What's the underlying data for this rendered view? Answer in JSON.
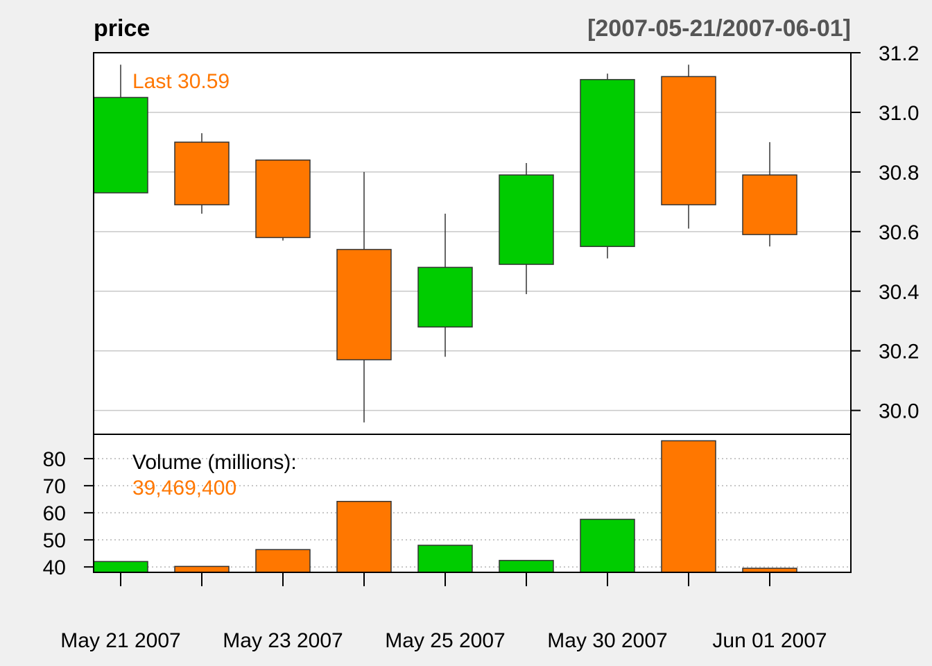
{
  "chart_data": {
    "type": "candlestick",
    "title": "price",
    "date_range": "[2007-05-21/2007-06-01]",
    "last_label": "Last 30.59",
    "volume_label": "Volume (millions):",
    "volume_value": "39,469,400",
    "colors": {
      "up": "#00cc00",
      "down": "#ff7700",
      "grid": "#c8c8c8",
      "annotation": "#ff7700"
    },
    "price_axis": {
      "min": 29.92,
      "max": 31.2,
      "ticks": [
        30.0,
        30.2,
        30.4,
        30.6,
        30.8,
        31.0,
        31.2
      ],
      "tick_labels": [
        "30.0",
        "30.2",
        "30.4",
        "30.6",
        "30.8",
        "31.0",
        "31.2"
      ]
    },
    "volume_axis": {
      "min": 38,
      "max": 89,
      "ticks": [
        40,
        50,
        60,
        70,
        80
      ],
      "tick_labels": [
        "40",
        "50",
        "60",
        "70",
        "80"
      ]
    },
    "x_labels": [
      {
        "index": 0,
        "label": "May 21 2007"
      },
      {
        "index": 2,
        "label": "May 23 2007"
      },
      {
        "index": 4,
        "label": "May 25 2007"
      },
      {
        "index": 6,
        "label": "May 30 2007"
      },
      {
        "index": 8,
        "label": "Jun 01 2007"
      }
    ],
    "candles": [
      {
        "open": 30.73,
        "high": 31.16,
        "low": 30.73,
        "close": 31.05,
        "volume": 42.0
      },
      {
        "open": 30.9,
        "high": 30.93,
        "low": 30.66,
        "close": 30.69,
        "volume": 40.2
      },
      {
        "open": 30.84,
        "high": 30.84,
        "low": 30.57,
        "close": 30.58,
        "volume": 46.4
      },
      {
        "open": 30.54,
        "high": 30.8,
        "low": 29.96,
        "close": 30.17,
        "volume": 64.2
      },
      {
        "open": 30.28,
        "high": 30.66,
        "low": 30.18,
        "close": 30.48,
        "volume": 48.0
      },
      {
        "open": 30.49,
        "high": 30.83,
        "low": 30.39,
        "close": 30.79,
        "volume": 42.4
      },
      {
        "open": 30.55,
        "high": 31.13,
        "low": 30.51,
        "close": 31.11,
        "volume": 57.6
      },
      {
        "open": 31.12,
        "high": 31.16,
        "low": 30.61,
        "close": 30.69,
        "volume": 86.6
      },
      {
        "open": 30.79,
        "high": 30.9,
        "low": 30.55,
        "close": 30.59,
        "volume": 39.5
      }
    ]
  }
}
